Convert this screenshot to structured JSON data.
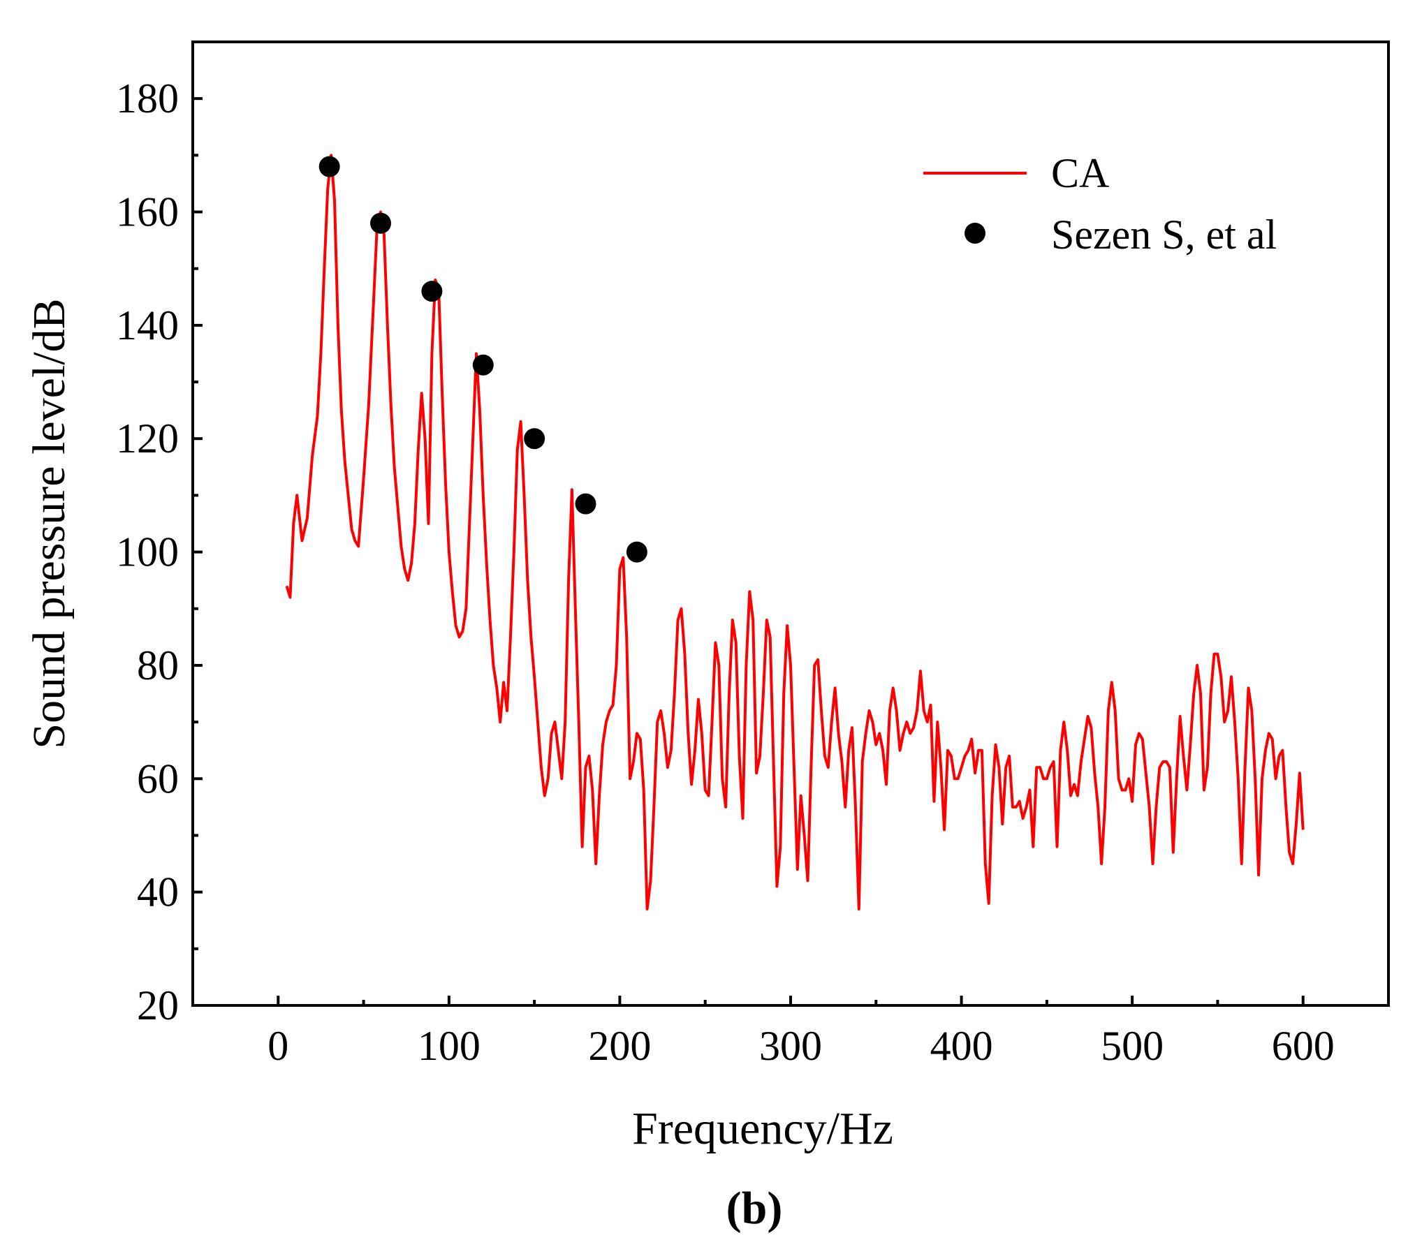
{
  "chart_data": {
    "type": "line",
    "panel_label": "(b)",
    "xlabel": "Frequency/Hz",
    "ylabel": "Sound pressure level/dB",
    "xlim": [
      -50,
      650
    ],
    "ylim": [
      20,
      190
    ],
    "xticks": [
      0,
      100,
      200,
      300,
      400,
      500,
      600
    ],
    "yticks": [
      20,
      40,
      60,
      80,
      100,
      120,
      140,
      160,
      180
    ],
    "grid": false,
    "legend_position": "top-right",
    "colors": {
      "ca": "#ff0000",
      "sezen": "#000000",
      "axis": "#000000"
    },
    "series": [
      {
        "name": "CA",
        "kind": "line",
        "x": [
          5,
          7,
          9,
          11,
          14,
          17,
          20,
          23,
          25,
          27,
          29,
          31,
          33,
          35,
          37,
          39,
          41,
          43,
          45,
          47,
          50,
          53,
          56,
          58,
          60,
          62,
          64,
          66,
          68,
          70,
          72,
          74,
          76,
          78,
          80,
          82,
          84,
          86,
          88,
          90,
          92,
          94,
          96,
          98,
          100,
          102,
          104,
          106,
          108,
          110,
          112,
          114,
          116,
          118,
          120,
          122,
          124,
          126,
          128,
          130,
          132,
          134,
          136,
          138,
          140,
          142,
          144,
          146,
          148,
          150,
          152,
          154,
          156,
          158,
          160,
          162,
          164,
          166,
          168,
          170,
          172,
          174,
          176,
          178,
          180,
          182,
          184,
          186,
          188,
          190,
          192,
          194,
          196,
          198,
          200,
          202,
          204,
          206,
          208,
          210,
          212,
          214,
          216,
          218,
          220,
          222,
          224,
          226,
          228,
          230,
          232,
          234,
          236,
          238,
          240,
          242,
          244,
          246,
          248,
          250,
          252,
          254,
          256,
          258,
          260,
          262,
          264,
          266,
          268,
          270,
          272,
          274,
          276,
          278,
          280,
          282,
          284,
          286,
          288,
          290,
          292,
          294,
          296,
          298,
          300,
          302,
          304,
          306,
          308,
          310,
          312,
          314,
          316,
          318,
          320,
          322,
          324,
          326,
          328,
          330,
          332,
          334,
          336,
          338,
          340,
          342,
          344,
          346,
          348,
          350,
          352,
          354,
          356,
          358,
          360,
          362,
          364,
          366,
          368,
          370,
          372,
          374,
          376,
          378,
          380,
          382,
          384,
          386,
          388,
          390,
          392,
          394,
          396,
          398,
          400,
          402,
          404,
          406,
          408,
          410,
          412,
          414,
          416,
          418,
          420,
          422,
          424,
          426,
          428,
          430,
          432,
          434,
          436,
          438,
          440,
          442,
          444,
          446,
          448,
          450,
          452,
          454,
          456,
          458,
          460,
          462,
          464,
          466,
          468,
          470,
          472,
          474,
          476,
          478,
          480,
          482,
          484,
          486,
          488,
          490,
          492,
          494,
          496,
          498,
          500,
          502,
          504,
          506,
          508,
          510,
          512,
          514,
          516,
          518,
          520,
          522,
          524,
          526,
          528,
          530,
          532,
          534,
          536,
          538,
          540,
          542,
          544,
          546,
          548,
          550,
          552,
          554,
          556,
          558,
          560,
          562,
          564,
          566,
          568,
          570,
          572,
          574,
          576,
          578,
          580,
          582,
          584,
          586,
          588,
          590,
          592,
          594,
          596,
          598,
          600
        ],
        "y": [
          94,
          92,
          105,
          110,
          102,
          106,
          117,
          124,
          135,
          150,
          164,
          170,
          162,
          140,
          125,
          116,
          110,
          104,
          102,
          101,
          113,
          126,
          145,
          158,
          160,
          156,
          140,
          126,
          115,
          108,
          101,
          97,
          95,
          98,
          105,
          118,
          128,
          120,
          105,
          135,
          148,
          146,
          128,
          112,
          100,
          93,
          87,
          85,
          86,
          90,
          105,
          120,
          135,
          125,
          110,
          98,
          88,
          80,
          76,
          70,
          77,
          72,
          85,
          100,
          118,
          123,
          110,
          95,
          85,
          78,
          70,
          62,
          57,
          60,
          68,
          70,
          65,
          60,
          70,
          95,
          111,
          90,
          70,
          48,
          62,
          64,
          58,
          45,
          57,
          66,
          70,
          72,
          73,
          80,
          97,
          99,
          85,
          60,
          63,
          68,
          67,
          58,
          37,
          42,
          55,
          70,
          72,
          68,
          62,
          65,
          75,
          88,
          90,
          82,
          68,
          59,
          65,
          74,
          68,
          58,
          57,
          70,
          84,
          80,
          60,
          55,
          75,
          88,
          84,
          64,
          53,
          80,
          93,
          88,
          61,
          64,
          75,
          88,
          85,
          63,
          41,
          48,
          75,
          87,
          80,
          62,
          44,
          57,
          50,
          42,
          62,
          80,
          81,
          72,
          64,
          62,
          70,
          76,
          68,
          63,
          55,
          65,
          69,
          55,
          37,
          63,
          68,
          72,
          70,
          66,
          68,
          65,
          59,
          72,
          76,
          72,
          65,
          68,
          70,
          68,
          69,
          72,
          79,
          72,
          70,
          73,
          56,
          70,
          62,
          51,
          65,
          64,
          60,
          60,
          62,
          64,
          65,
          67,
          61,
          65,
          65,
          45,
          38,
          57,
          66,
          62,
          52,
          62,
          64,
          55,
          55,
          56,
          53,
          55,
          58,
          48,
          62,
          62,
          60,
          60,
          62,
          63,
          48,
          65,
          70,
          65,
          57,
          59,
          57,
          63,
          67,
          71,
          69,
          61,
          55,
          45,
          55,
          72,
          77,
          72,
          60,
          58,
          58,
          60,
          56,
          66,
          68,
          67,
          61,
          55,
          45,
          55,
          62,
          63,
          63,
          62,
          47,
          60,
          71,
          64,
          58,
          66,
          75,
          80,
          75,
          58,
          62,
          75,
          82,
          82,
          78,
          70,
          72,
          78,
          70,
          60,
          45,
          62,
          76,
          72,
          60,
          43,
          60,
          65,
          68,
          67,
          60,
          64,
          65,
          55,
          47,
          45,
          52,
          61,
          51
        ]
      },
      {
        "name": "Sezen S, et al",
        "kind": "scatter",
        "x": [
          30,
          60,
          90,
          120,
          150,
          180,
          210
        ],
        "y": [
          168,
          158,
          146,
          133,
          120,
          108.5,
          100
        ]
      }
    ]
  }
}
